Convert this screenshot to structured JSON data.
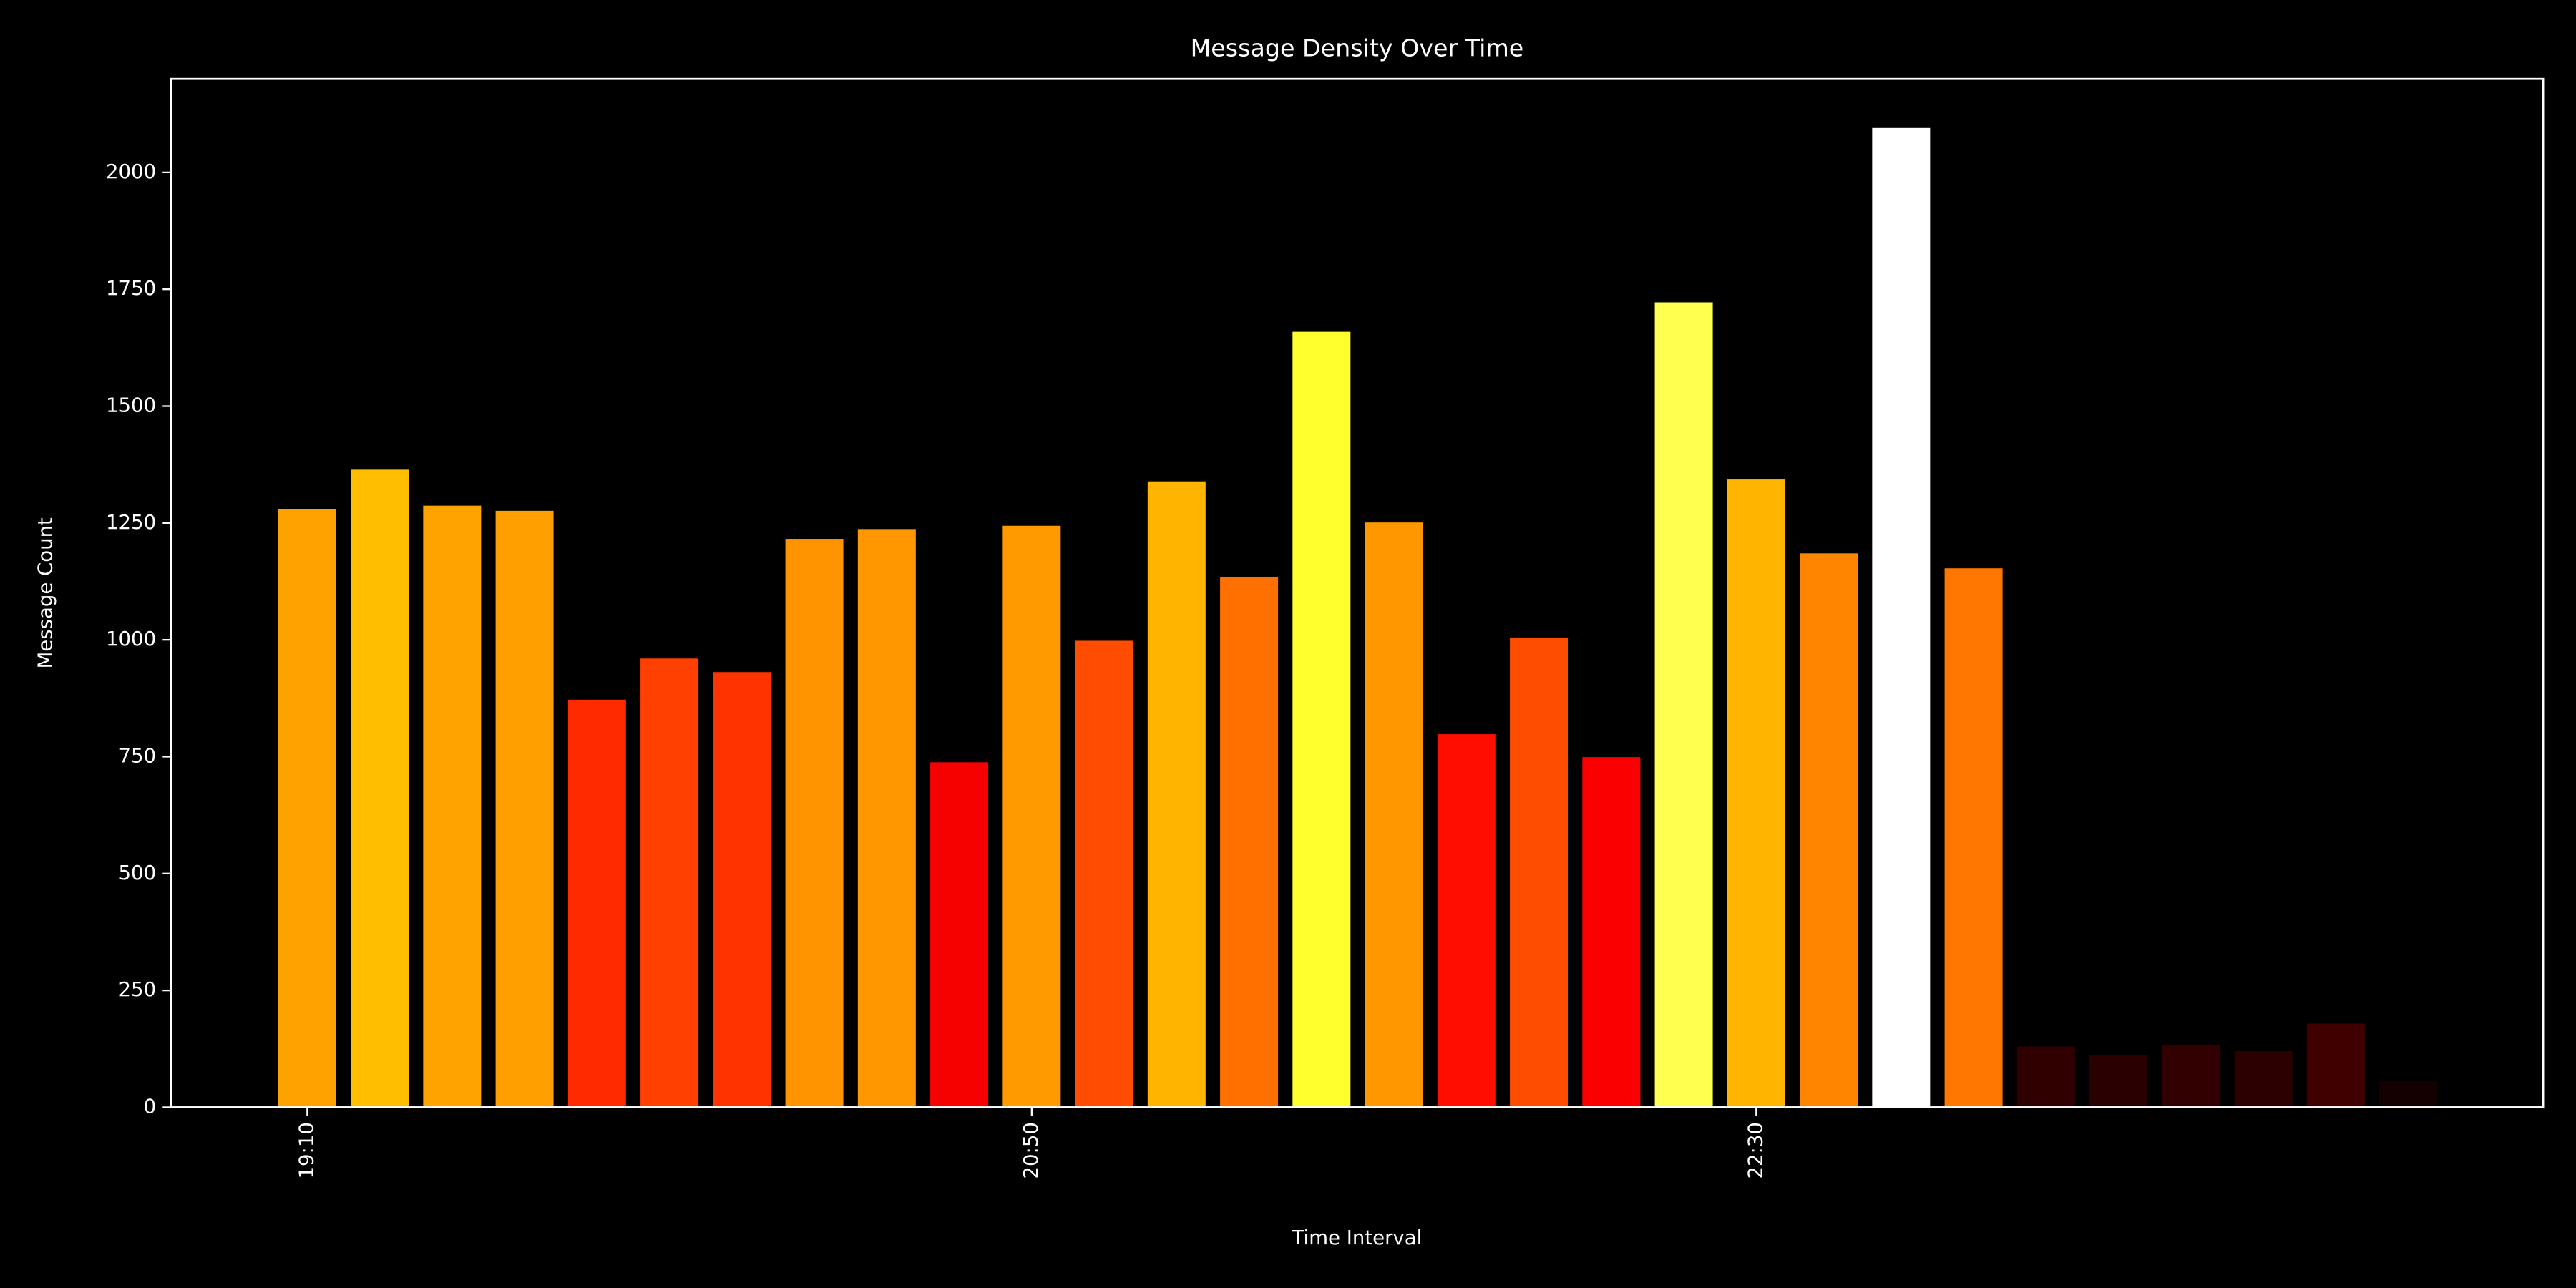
{
  "chart_data": {
    "type": "bar",
    "title": "Message Density Over Time",
    "x_label": "Time Interval",
    "y_label": "Message Count",
    "categories": [
      "19:10",
      null,
      null,
      null,
      null,
      null,
      null,
      null,
      null,
      null,
      "20:50",
      null,
      null,
      null,
      null,
      null,
      null,
      null,
      null,
      null,
      "22:30",
      null,
      null,
      null,
      null,
      null,
      null,
      null,
      null,
      null
    ],
    "values": [
      1280,
      1364,
      1287,
      1276,
      872,
      960,
      931,
      1216,
      1237,
      738,
      1244,
      998,
      1339,
      1135,
      1659,
      1251,
      798,
      1005,
      749,
      1722,
      1343,
      1185,
      2095,
      1153,
      130,
      112,
      134,
      120,
      179,
      56
    ],
    "colors": [
      "#ffa200",
      "#ffbf00",
      "#ffa300",
      "#ffa000",
      "#ff2a00",
      "#ff4000",
      "#ff3300",
      "#ff9300",
      "#ff9800",
      "#f70000",
      "#ff9a00",
      "#ff4c00",
      "#ffb400",
      "#ff7000",
      "#ffff2e",
      "#ff9700",
      "#ff0f00",
      "#ff4d00",
      "#fa0000",
      "#ffff50",
      "#ffb500",
      "#ff8400",
      "#ffffff",
      "#ff7700",
      "#300000",
      "#2a0000",
      "#320000",
      "#2d0000",
      "#400000",
      "#150000"
    ],
    "ylim": [
      0,
      2200
    ],
    "yticks": [
      0,
      250,
      500,
      750,
      1000,
      1250,
      1500,
      1750,
      2000
    ],
    "grid": false
  }
}
